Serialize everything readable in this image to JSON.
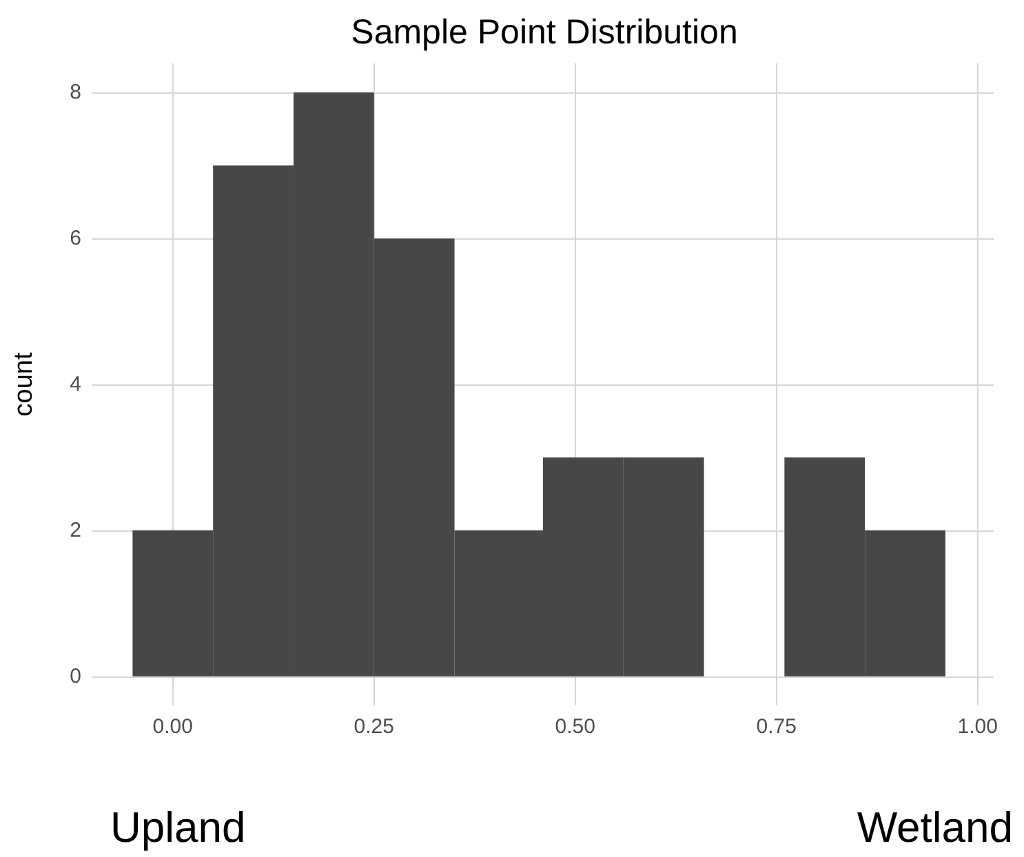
{
  "chart_data": {
    "type": "histogram",
    "title": "Sample Point Distribution",
    "ylabel": "count",
    "bins": [
      -0.05,
      0.05,
      0.15,
      0.25,
      0.35,
      0.46,
      0.56,
      0.66,
      0.76,
      0.86,
      0.96
    ],
    "values": [
      2,
      7,
      8,
      6,
      2,
      3,
      3,
      0,
      3,
      2
    ],
    "color": "#474747",
    "xlim": [
      -0.1,
      1.02
    ],
    "xticks": [
      {
        "value": 0,
        "label": "0.00"
      },
      {
        "value": 0.25,
        "label": "0.25"
      },
      {
        "value": 0.5,
        "label": "0.50"
      },
      {
        "value": 0.75,
        "label": "0.75"
      },
      {
        "value": 1,
        "label": "1.00"
      }
    ],
    "ylim": [
      -0.4,
      8.4
    ],
    "yticks": [
      0,
      2,
      4,
      6,
      8
    ],
    "grid": true,
    "annotations": [
      "Upland",
      "Wetland"
    ]
  }
}
